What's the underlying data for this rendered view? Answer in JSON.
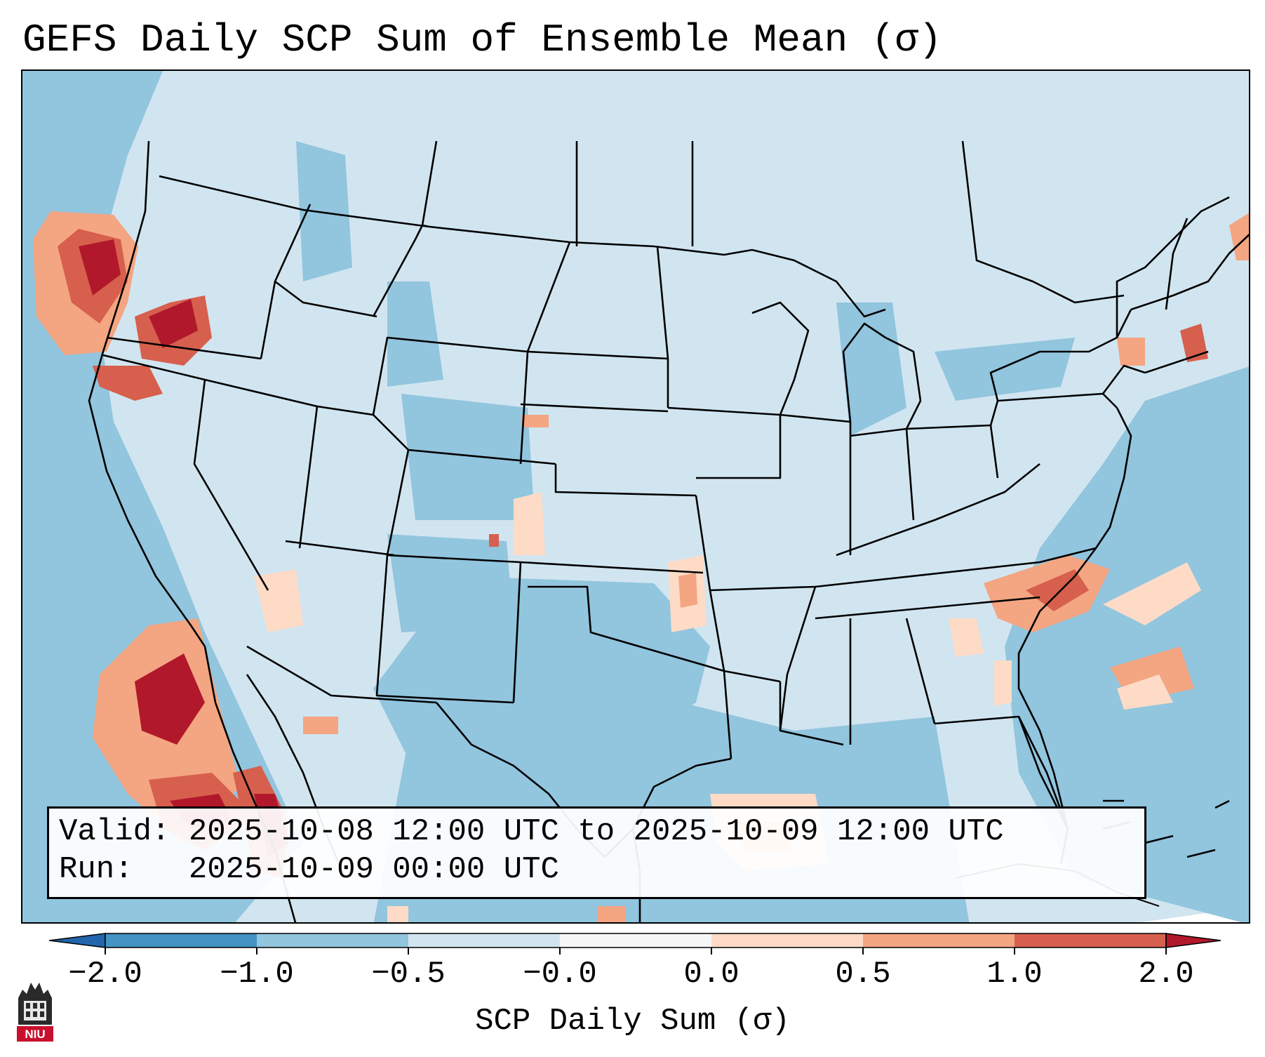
{
  "title": "GEFS Daily SCP Sum of Ensemble Mean (σ)",
  "info": {
    "valid_line": "Valid: 2025-10-08 12:00 UTC to 2025-10-09 12:00 UTC",
    "run_line": "Run:   2025-10-09 00:00 UTC"
  },
  "colorbar": {
    "label": "SCP Daily Sum (σ)",
    "ticks": [
      "−2.0",
      "−1.0",
      "−0.5",
      "−0.0",
      "0.0",
      "0.5",
      "1.0",
      "2.0"
    ],
    "bins": [
      {
        "range": "< -2.0",
        "color": "#2166ac"
      },
      {
        "range": "-2.0 to -1.0",
        "color": "#4393c3"
      },
      {
        "range": "-1.0 to -0.5",
        "color": "#92c5de"
      },
      {
        "range": "-0.5 to -0.0",
        "color": "#d1e5f0"
      },
      {
        "range": "-0.0 to 0.0",
        "color": "#f7f7f7"
      },
      {
        "range": "0.0 to 0.5",
        "color": "#fddbc7"
      },
      {
        "range": "0.5 to 1.0",
        "color": "#f4a582"
      },
      {
        "range": "1.0 to 2.0",
        "color": "#d6604d"
      },
      {
        "range": "> 2.0",
        "color": "#b2182b"
      }
    ]
  },
  "logo": {
    "text": "NIU",
    "color": "#c8102e"
  }
}
